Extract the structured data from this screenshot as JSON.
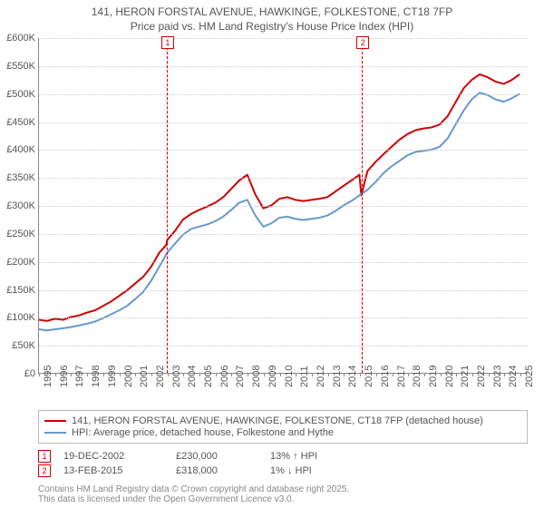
{
  "title": {
    "line1": "141, HERON FORSTAL AVENUE, HAWKINGE, FOLKESTONE, CT18 7FP",
    "line2": "Price paid vs. HM Land Registry's House Price Index (HPI)",
    "fontsize": 12,
    "color": "#555555"
  },
  "chart": {
    "type": "line",
    "background_color": "#ffffff",
    "grid_color": "#cccccc",
    "axis_color": "#888888",
    "xlim": [
      1995,
      2025.5
    ],
    "ylim": [
      0,
      600
    ],
    "ytick_step": 50,
    "ytick_labels": [
      "£0",
      "£50K",
      "£100K",
      "£150K",
      "£200K",
      "£250K",
      "£300K",
      "£350K",
      "£400K",
      "£450K",
      "£500K",
      "£550K",
      "£600K"
    ],
    "xtick_years": [
      1995,
      1996,
      1997,
      1998,
      1999,
      2000,
      2001,
      2002,
      2003,
      2004,
      2005,
      2006,
      2007,
      2008,
      2009,
      2010,
      2011,
      2012,
      2013,
      2014,
      2015,
      2016,
      2017,
      2018,
      2019,
      2020,
      2021,
      2022,
      2023,
      2024,
      2025
    ],
    "series": [
      {
        "name": "price_paid",
        "color": "#cc0000",
        "line_width": 2,
        "points": [
          [
            1995,
            95
          ],
          [
            1995.5,
            93
          ],
          [
            1996,
            97
          ],
          [
            1996.5,
            95
          ],
          [
            1997,
            100
          ],
          [
            1997.5,
            103
          ],
          [
            1998,
            108
          ],
          [
            1998.5,
            112
          ],
          [
            1999,
            120
          ],
          [
            1999.5,
            128
          ],
          [
            2000,
            138
          ],
          [
            2000.5,
            148
          ],
          [
            2001,
            160
          ],
          [
            2001.5,
            172
          ],
          [
            2002,
            190
          ],
          [
            2002.5,
            215
          ],
          [
            2002.96,
            230
          ],
          [
            2003,
            238
          ],
          [
            2003.5,
            255
          ],
          [
            2004,
            275
          ],
          [
            2004.5,
            285
          ],
          [
            2005,
            292
          ],
          [
            2005.5,
            298
          ],
          [
            2006,
            305
          ],
          [
            2006.5,
            315
          ],
          [
            2007,
            330
          ],
          [
            2007.5,
            345
          ],
          [
            2008,
            355
          ],
          [
            2008.5,
            320
          ],
          [
            2009,
            295
          ],
          [
            2009.5,
            300
          ],
          [
            2010,
            312
          ],
          [
            2010.5,
            315
          ],
          [
            2011,
            310
          ],
          [
            2011.5,
            308
          ],
          [
            2012,
            310
          ],
          [
            2012.5,
            312
          ],
          [
            2013,
            315
          ],
          [
            2013.5,
            325
          ],
          [
            2014,
            335
          ],
          [
            2014.5,
            345
          ],
          [
            2015,
            355
          ],
          [
            2015.12,
            318
          ],
          [
            2015.5,
            362
          ],
          [
            2016,
            378
          ],
          [
            2016.5,
            392
          ],
          [
            2017,
            405
          ],
          [
            2017.5,
            418
          ],
          [
            2018,
            428
          ],
          [
            2018.5,
            435
          ],
          [
            2019,
            438
          ],
          [
            2019.5,
            440
          ],
          [
            2020,
            445
          ],
          [
            2020.5,
            460
          ],
          [
            2021,
            485
          ],
          [
            2021.5,
            510
          ],
          [
            2022,
            525
          ],
          [
            2022.5,
            535
          ],
          [
            2023,
            530
          ],
          [
            2023.5,
            522
          ],
          [
            2024,
            518
          ],
          [
            2024.5,
            525
          ],
          [
            2025,
            535
          ]
        ]
      },
      {
        "name": "hpi",
        "color": "#6699cc",
        "line_width": 2,
        "points": [
          [
            1995,
            78
          ],
          [
            1995.5,
            76
          ],
          [
            1996,
            78
          ],
          [
            1996.5,
            80
          ],
          [
            1997,
            82
          ],
          [
            1997.5,
            85
          ],
          [
            1998,
            88
          ],
          [
            1998.5,
            92
          ],
          [
            1999,
            98
          ],
          [
            1999.5,
            105
          ],
          [
            2000,
            112
          ],
          [
            2000.5,
            120
          ],
          [
            2001,
            132
          ],
          [
            2001.5,
            145
          ],
          [
            2002,
            165
          ],
          [
            2002.5,
            190
          ],
          [
            2003,
            215
          ],
          [
            2003.5,
            232
          ],
          [
            2004,
            248
          ],
          [
            2004.5,
            258
          ],
          [
            2005,
            262
          ],
          [
            2005.5,
            266
          ],
          [
            2006,
            272
          ],
          [
            2006.5,
            280
          ],
          [
            2007,
            292
          ],
          [
            2007.5,
            305
          ],
          [
            2008,
            310
          ],
          [
            2008.5,
            282
          ],
          [
            2009,
            262
          ],
          [
            2009.5,
            268
          ],
          [
            2010,
            278
          ],
          [
            2010.5,
            280
          ],
          [
            2011,
            276
          ],
          [
            2011.5,
            274
          ],
          [
            2012,
            276
          ],
          [
            2012.5,
            278
          ],
          [
            2013,
            282
          ],
          [
            2013.5,
            290
          ],
          [
            2014,
            300
          ],
          [
            2014.5,
            308
          ],
          [
            2015,
            318
          ],
          [
            2015.5,
            328
          ],
          [
            2016,
            342
          ],
          [
            2016.5,
            358
          ],
          [
            2017,
            370
          ],
          [
            2017.5,
            380
          ],
          [
            2018,
            390
          ],
          [
            2018.5,
            396
          ],
          [
            2019,
            398
          ],
          [
            2019.5,
            400
          ],
          [
            2020,
            405
          ],
          [
            2020.5,
            420
          ],
          [
            2021,
            445
          ],
          [
            2021.5,
            470
          ],
          [
            2022,
            490
          ],
          [
            2022.5,
            502
          ],
          [
            2023,
            498
          ],
          [
            2023.5,
            490
          ],
          [
            2024,
            486
          ],
          [
            2024.5,
            492
          ],
          [
            2025,
            500
          ]
        ]
      }
    ],
    "markers": [
      {
        "id": "1",
        "year": 2002.96,
        "label": "1"
      },
      {
        "id": "2",
        "year": 2015.12,
        "label": "2"
      }
    ]
  },
  "legend": {
    "items": [
      {
        "swatch": "#cc0000",
        "label": "141, HERON FORSTAL AVENUE, HAWKINGE, FOLKESTONE, CT18 7FP (detached house)"
      },
      {
        "swatch": "#6699cc",
        "label": "HPI: Average price, detached house, Folkestone and Hythe"
      }
    ]
  },
  "marker_rows": [
    {
      "id": "1",
      "date": "19-DEC-2002",
      "price": "£230,000",
      "pct": "13% ↑ HPI"
    },
    {
      "id": "2",
      "date": "13-FEB-2015",
      "price": "£318,000",
      "pct": "1% ↓ HPI"
    }
  ],
  "footer": {
    "line1": "Contains HM Land Registry data © Crown copyright and database right 2025.",
    "line2": "This data is licensed under the Open Government Licence v3.0."
  }
}
